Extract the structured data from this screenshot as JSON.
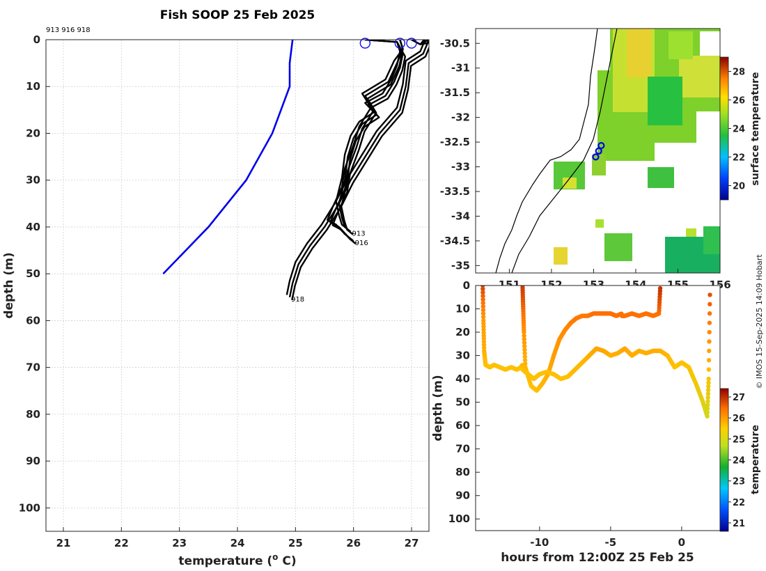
{
  "figure": {
    "title": "Fish SOOP 25 Feb 2025",
    "profile_ids": "913 916 918",
    "credit": "© IMOS 15-Sep-2025 14:09 Hobart"
  },
  "chart_data": [
    {
      "id": "profiles",
      "type": "line",
      "title": "Fish SOOP 25 Feb 2025",
      "xlabel": "temperature (° C)",
      "ylabel": "depth (m)",
      "xlim": [
        20.7,
        27.3
      ],
      "ylim": [
        105,
        0
      ],
      "xticks": [
        21,
        22,
        23,
        24,
        25,
        26,
        27
      ],
      "yticks": [
        0,
        10,
        20,
        30,
        40,
        50,
        60,
        70,
        80,
        90,
        100
      ],
      "grid": true,
      "reference_profile": {
        "color": "#0000ee",
        "temperature": [
          24.95,
          24.9,
          24.9,
          24.6,
          24.15,
          23.5,
          22.72
        ],
        "depth": [
          0,
          5,
          10,
          20,
          30,
          40,
          50
        ]
      },
      "profiles": [
        {
          "label": "913",
          "color": "#000000",
          "temperature": [
            26.2,
            26.75,
            26.85,
            26.8,
            26.7,
            26.55,
            26.25,
            26.4,
            26.15,
            26.0,
            25.9,
            25.85,
            25.75,
            25.8,
            25.85,
            25.95
          ],
          "depth": [
            0,
            0.5,
            3,
            6,
            9,
            12,
            14,
            16,
            18,
            21,
            25,
            30,
            35,
            38,
            40,
            41
          ]
        },
        {
          "label": "916",
          "color": "#000000",
          "temperature": [
            26.8,
            26.85,
            26.75,
            26.6,
            26.2,
            26.35,
            26.15,
            26.05,
            25.9,
            25.85,
            25.7,
            25.6,
            25.75,
            25.9,
            26.0
          ],
          "depth": [
            0,
            2,
            5,
            9,
            12,
            15,
            19,
            23,
            28,
            32,
            36,
            39,
            40,
            42,
            43
          ]
        },
        {
          "label": "918",
          "color": "#000000",
          "temperature": [
            27.0,
            27.15,
            27.3,
            27.2,
            26.95,
            26.9,
            26.8,
            26.45,
            26.2,
            25.95,
            25.75,
            25.5,
            25.25,
            25.05,
            24.95,
            24.9
          ],
          "depth": [
            0,
            1,
            0,
            3,
            5,
            10,
            15,
            20,
            25,
            30,
            35,
            40,
            44,
            48,
            52,
            55
          ]
        }
      ],
      "profile_labels": [
        "913",
        "916",
        "918"
      ]
    },
    {
      "id": "map",
      "type": "heatmap",
      "colorbar_label": "surface temperature",
      "colorbar_ticks": [
        20,
        22,
        24,
        26,
        28
      ],
      "colorbar_range": [
        19,
        29
      ],
      "xlim": [
        150.2,
        156.0
      ],
      "ylim": [
        -35.15,
        -30.2
      ],
      "xticks": [
        151,
        152,
        153,
        154,
        155,
        156
      ],
      "yticks": [
        -30.5,
        -31,
        -31.5,
        -32,
        -32.5,
        -33,
        -33.5,
        -34,
        -34.5,
        -35
      ],
      "profile_locations": [
        {
          "lon": 153.05,
          "lat": -32.8
        },
        {
          "lon": 153.12,
          "lat": -32.68
        },
        {
          "lon": 153.18,
          "lat": -32.57
        }
      ]
    },
    {
      "id": "timeseries",
      "type": "scatter",
      "xlabel": "hours from 12:00Z 25 Feb 25",
      "ylabel": "depth (m)",
      "colorbar_label": "temperature",
      "colorbar_ticks": [
        21,
        22,
        23,
        24,
        25,
        26,
        27
      ],
      "colorbar_range": [
        20.6,
        27.4
      ],
      "xlim": [
        -14.5,
        2.7
      ],
      "ylim": [
        105,
        0
      ],
      "xticks": [
        -10,
        -5,
        0
      ],
      "yticks": [
        0,
        10,
        20,
        30,
        40,
        50,
        60,
        70,
        80,
        90,
        100
      ],
      "tracks": [
        {
          "hours": [
            -14.0,
            -13.95,
            -13.9,
            -13.8,
            -13.5,
            -13.2,
            -12.8,
            -12.4,
            -12.0,
            -11.6,
            -11.3,
            -11.2
          ],
          "depth": [
            0,
            15,
            28,
            34,
            35,
            34,
            35,
            36,
            35,
            36,
            35,
            34
          ],
          "temperature": [
            26.8,
            25.9,
            25.7,
            25.5,
            25.5,
            25.5,
            25.5,
            25.5,
            25.5,
            25.5,
            25.5,
            25.6
          ]
        },
        {
          "hours": [
            -11.2,
            -11.15,
            -11.1,
            -11.0,
            -10.6,
            -10.2,
            -9.8,
            -9.4,
            -9.0,
            -8.6,
            -8.2,
            -7.8,
            -7.4,
            -7.0,
            -6.6,
            -6.2,
            -5.8,
            -5.4,
            -5.0,
            -4.6,
            -4.2
          ],
          "depth": [
            0,
            10,
            20,
            35,
            43,
            45,
            42,
            38,
            30,
            23,
            19,
            16,
            14,
            13,
            13,
            12,
            12,
            12,
            12,
            13,
            12
          ],
          "temperature": [
            26.9,
            26.5,
            26.0,
            25.6,
            25.5,
            25.5,
            25.6,
            25.7,
            25.9,
            26.0,
            26.1,
            26.2,
            26.3,
            26.3,
            26.3,
            26.4,
            26.4,
            26.4,
            26.4,
            26.4,
            26.4
          ]
        },
        {
          "hours": [
            -4.2,
            -4.0,
            -3.5,
            -3.0,
            -2.5,
            -2.0,
            -1.6,
            -1.5
          ],
          "depth": [
            13,
            13,
            12,
            13,
            12,
            13,
            12,
            0
          ],
          "temperature": [
            26.4,
            26.4,
            26.4,
            26.4,
            26.4,
            26.4,
            26.4,
            27.0
          ]
        },
        {
          "hours": [
            -11.2,
            -10.8,
            -10.4,
            -10.0,
            -9.5,
            -9.0,
            -8.5,
            -8.0,
            -7.5,
            -7.0,
            -6.5,
            -6.0,
            -5.5,
            -5.0,
            -4.5,
            -4.0,
            -3.5,
            -3.0,
            -2.5,
            -2.0,
            -1.5,
            -1.0,
            -0.5,
            0.0,
            0.5,
            1.0,
            1.5,
            1.8,
            1.9,
            2.0
          ],
          "depth": [
            36,
            38,
            40,
            38,
            37,
            38,
            40,
            39,
            36,
            33,
            30,
            27,
            28,
            30,
            29,
            27,
            30,
            28,
            29,
            28,
            28,
            30,
            35,
            33,
            35,
            42,
            50,
            56,
            40,
            0
          ],
          "temperature": [
            25.5,
            25.5,
            25.5,
            25.5,
            25.5,
            25.5,
            25.5,
            25.5,
            25.6,
            25.6,
            25.7,
            25.8,
            25.8,
            25.7,
            25.7,
            25.8,
            25.7,
            25.7,
            25.7,
            25.7,
            25.7,
            25.6,
            25.5,
            25.5,
            25.5,
            25.3,
            25.1,
            24.9,
            25.4,
            26.8
          ]
        }
      ]
    }
  ]
}
